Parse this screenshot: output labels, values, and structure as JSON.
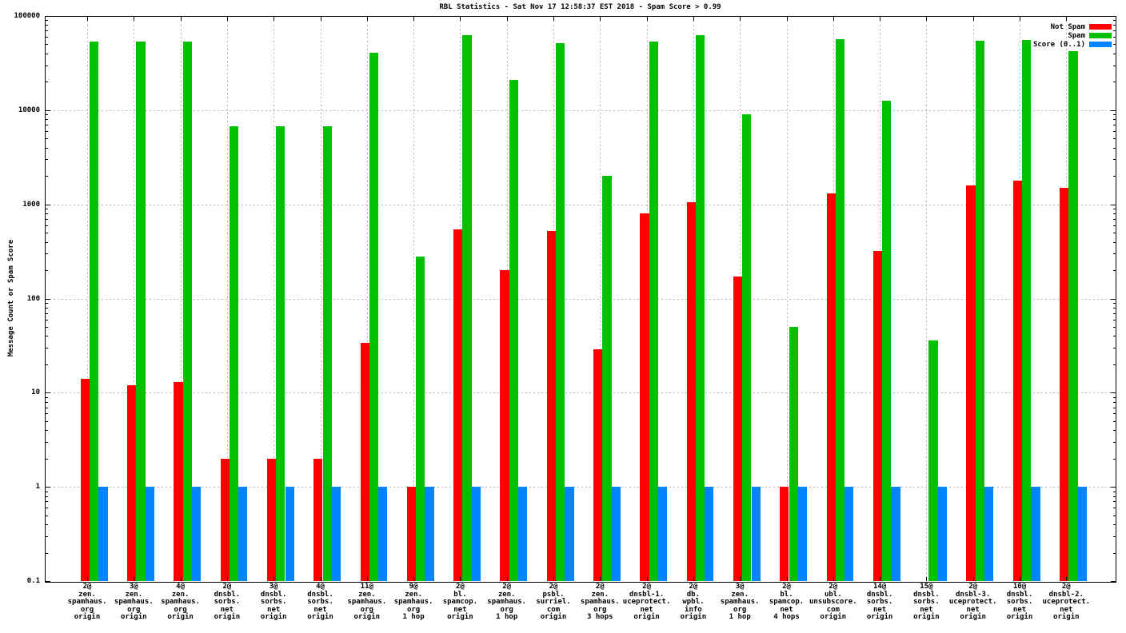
{
  "title": "RBL Statistics - Sat Nov 17 12:58:37 EST 2018 - Spam Score > 0.99",
  "y_axis_title": "Message Count or Spam Score",
  "y_tick_labels": [
    "100000",
    "10000",
    "1000",
    "100",
    "10",
    "1",
    "0.1"
  ],
  "colors": {
    "not_spam": "#ff0000",
    "spam": "#00c000",
    "score": "#0084ff",
    "grid": "#b4b4b4",
    "border": "#000000",
    "background": "#ffffff"
  },
  "legend": {
    "position": "top-right",
    "entries": [
      {
        "label": "Not Spam",
        "color_key": "not_spam"
      },
      {
        "label": "Spam",
        "color_key": "spam"
      },
      {
        "label": "Score (0..1)",
        "color_key": "score"
      }
    ]
  },
  "chart_data": {
    "type": "bar",
    "scale": "log",
    "ylim": [
      0.1,
      100000
    ],
    "grid": true,
    "ylabel": "Message Count or Spam Score",
    "series_names": [
      "Not Spam",
      "Spam",
      "Score (0..1)"
    ],
    "groups": [
      {
        "label_lines": [
          "2@",
          "zen.",
          "spamhaus.",
          "org",
          "origin"
        ],
        "not_spam": 14,
        "spam": 53000,
        "score": 1
      },
      {
        "label_lines": [
          "3@",
          "zen.",
          "spamhaus.",
          "org",
          "origin"
        ],
        "not_spam": 12,
        "spam": 53000,
        "score": 1
      },
      {
        "label_lines": [
          "4@",
          "zen.",
          "spamhaus.",
          "org",
          "origin"
        ],
        "not_spam": 13,
        "spam": 53000,
        "score": 1
      },
      {
        "label_lines": [
          "2@",
          "dnsbl.",
          "sorbs.",
          "net",
          "origin"
        ],
        "not_spam": 2,
        "spam": 6800,
        "score": 1
      },
      {
        "label_lines": [
          "3@",
          "dnsbl.",
          "sorbs.",
          "net",
          "origin"
        ],
        "not_spam": 2,
        "spam": 6800,
        "score": 1
      },
      {
        "label_lines": [
          "4@",
          "dnsbl.",
          "sorbs.",
          "net",
          "origin"
        ],
        "not_spam": 2,
        "spam": 6800,
        "score": 1
      },
      {
        "label_lines": [
          "11@",
          "zen.",
          "spamhaus.",
          "org",
          "origin"
        ],
        "not_spam": 34,
        "spam": 41000,
        "score": 1
      },
      {
        "label_lines": [
          "9@",
          "zen.",
          "spamhaus.",
          "org",
          "1 hop"
        ],
        "not_spam": 1,
        "spam": 280,
        "score": 1
      },
      {
        "label_lines": [
          "2@",
          "bl.",
          "spamcop.",
          "net",
          "origin"
        ],
        "not_spam": 540,
        "spam": 63000,
        "score": 1
      },
      {
        "label_lines": [
          "2@",
          "zen.",
          "spamhaus.",
          "org",
          "1 hop"
        ],
        "not_spam": 200,
        "spam": 21000,
        "score": 1
      },
      {
        "label_lines": [
          "2@",
          "psbl.",
          "surriel.",
          "com",
          "origin"
        ],
        "not_spam": 520,
        "spam": 51000,
        "score": 1
      },
      {
        "label_lines": [
          "2@",
          "zen.",
          "spamhaus.",
          "org",
          "3 hops"
        ],
        "not_spam": 29,
        "spam": 2000,
        "score": 1
      },
      {
        "label_lines": [
          "2@",
          "dnsbl-1.",
          "uceprotect.",
          "net",
          "origin"
        ],
        "not_spam": 800,
        "spam": 54000,
        "score": 1
      },
      {
        "label_lines": [
          "2@",
          "db.",
          "wpbl.",
          "info",
          "origin"
        ],
        "not_spam": 1050,
        "spam": 63000,
        "score": 1
      },
      {
        "label_lines": [
          "3@",
          "zen.",
          "spamhaus.",
          "org",
          "1 hop"
        ],
        "not_spam": 170,
        "spam": 9000,
        "score": 1
      },
      {
        "label_lines": [
          "2@",
          "bl.",
          "spamcop.",
          "net",
          "4 hops"
        ],
        "not_spam": 1,
        "spam": 50,
        "score": 1
      },
      {
        "label_lines": [
          "2@",
          "ubl.",
          "unsubscore.",
          "com",
          "origin"
        ],
        "not_spam": 1300,
        "spam": 57000,
        "score": 1
      },
      {
        "label_lines": [
          "14@",
          "dnsbl.",
          "sorbs.",
          "net",
          "origin"
        ],
        "not_spam": 320,
        "spam": 12500,
        "score": 1
      },
      {
        "label_lines": [
          "15@",
          "dnsbl.",
          "sorbs.",
          "net",
          "origin"
        ],
        "not_spam": 0,
        "spam": 36,
        "score": 1
      },
      {
        "label_lines": [
          "2@",
          "dnsbl-3.",
          "uceprotect.",
          "net",
          "origin"
        ],
        "not_spam": 1600,
        "spam": 55000,
        "score": 1
      },
      {
        "label_lines": [
          "10@",
          "dnsbl.",
          "sorbs.",
          "net",
          "origin"
        ],
        "not_spam": 1800,
        "spam": 56000,
        "score": 1
      },
      {
        "label_lines": [
          "2@",
          "dnsbl-2.",
          "uceprotect.",
          "net",
          "origin"
        ],
        "not_spam": 1500,
        "spam": 42000,
        "score": 1
      }
    ]
  }
}
